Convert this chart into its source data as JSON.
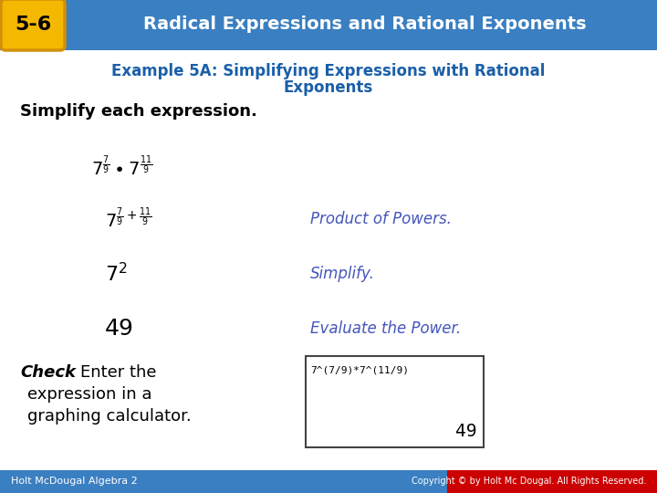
{
  "header_bg_color": "#3a7fc1",
  "header_text_color": "#ffffff",
  "badge_bg_color": "#f5b800",
  "badge_text_color": "#000000",
  "badge_label": "5-6",
  "header_title": "Radical Expressions and Rational Exponents",
  "example_title_color": "#1a5fa8",
  "body_bg_color": "#ffffff",
  "outer_bg_color": "#d6e4f0",
  "simplify_label": "Simplify each expression.",
  "footer_bg_color": "#3a7fc1",
  "footer_left": "Holt McDougal Algebra 2",
  "footer_right": "Copyright © by Holt Mc Dougal. All Rights Reserved.",
  "step_color": "#4455bb",
  "calc_border": "#444444",
  "calc_bg": "#ffffff",
  "calc_text_color": "#000000",
  "calc_display_text": "7^(7/9)*7^(11/9)",
  "calc_result": "49",
  "footer_red_color": "#cc0000"
}
